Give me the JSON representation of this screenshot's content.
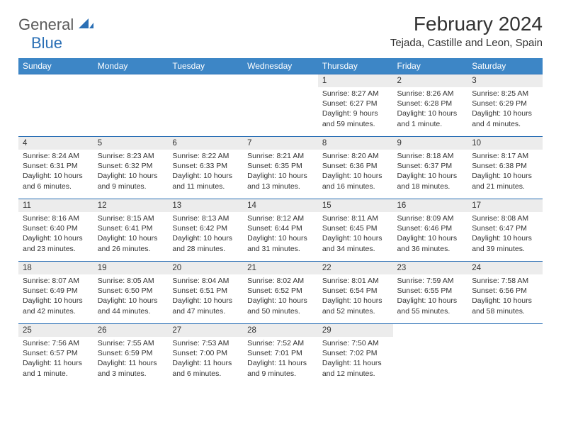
{
  "brand": {
    "part1": "General",
    "part2": "Blue"
  },
  "title": "February 2024",
  "location": "Tejada, Castille and Leon, Spain",
  "colors": {
    "header_bg": "#3d86c6",
    "border": "#2a6fb5",
    "daynum_bg": "#ececec",
    "text": "#333333",
    "logo_gray": "#5a5a5a",
    "logo_blue": "#2a6fb5",
    "page_bg": "#ffffff"
  },
  "typography": {
    "title_fontsize": 28,
    "location_fontsize": 15,
    "header_fontsize": 12,
    "daynum_fontsize": 11.5,
    "body_fontsize": 10.5
  },
  "layout": {
    "columns": 7,
    "rows": 5,
    "first_day_col": 4
  },
  "weekdays": [
    "Sunday",
    "Monday",
    "Tuesday",
    "Wednesday",
    "Thursday",
    "Friday",
    "Saturday"
  ],
  "days": [
    {
      "n": "1",
      "sr": "Sunrise: 8:27 AM",
      "ss": "Sunset: 6:27 PM",
      "dl": "Daylight: 9 hours and 59 minutes."
    },
    {
      "n": "2",
      "sr": "Sunrise: 8:26 AM",
      "ss": "Sunset: 6:28 PM",
      "dl": "Daylight: 10 hours and 1 minute."
    },
    {
      "n": "3",
      "sr": "Sunrise: 8:25 AM",
      "ss": "Sunset: 6:29 PM",
      "dl": "Daylight: 10 hours and 4 minutes."
    },
    {
      "n": "4",
      "sr": "Sunrise: 8:24 AM",
      "ss": "Sunset: 6:31 PM",
      "dl": "Daylight: 10 hours and 6 minutes."
    },
    {
      "n": "5",
      "sr": "Sunrise: 8:23 AM",
      "ss": "Sunset: 6:32 PM",
      "dl": "Daylight: 10 hours and 9 minutes."
    },
    {
      "n": "6",
      "sr": "Sunrise: 8:22 AM",
      "ss": "Sunset: 6:33 PM",
      "dl": "Daylight: 10 hours and 11 minutes."
    },
    {
      "n": "7",
      "sr": "Sunrise: 8:21 AM",
      "ss": "Sunset: 6:35 PM",
      "dl": "Daylight: 10 hours and 13 minutes."
    },
    {
      "n": "8",
      "sr": "Sunrise: 8:20 AM",
      "ss": "Sunset: 6:36 PM",
      "dl": "Daylight: 10 hours and 16 minutes."
    },
    {
      "n": "9",
      "sr": "Sunrise: 8:18 AM",
      "ss": "Sunset: 6:37 PM",
      "dl": "Daylight: 10 hours and 18 minutes."
    },
    {
      "n": "10",
      "sr": "Sunrise: 8:17 AM",
      "ss": "Sunset: 6:38 PM",
      "dl": "Daylight: 10 hours and 21 minutes."
    },
    {
      "n": "11",
      "sr": "Sunrise: 8:16 AM",
      "ss": "Sunset: 6:40 PM",
      "dl": "Daylight: 10 hours and 23 minutes."
    },
    {
      "n": "12",
      "sr": "Sunrise: 8:15 AM",
      "ss": "Sunset: 6:41 PM",
      "dl": "Daylight: 10 hours and 26 minutes."
    },
    {
      "n": "13",
      "sr": "Sunrise: 8:13 AM",
      "ss": "Sunset: 6:42 PM",
      "dl": "Daylight: 10 hours and 28 minutes."
    },
    {
      "n": "14",
      "sr": "Sunrise: 8:12 AM",
      "ss": "Sunset: 6:44 PM",
      "dl": "Daylight: 10 hours and 31 minutes."
    },
    {
      "n": "15",
      "sr": "Sunrise: 8:11 AM",
      "ss": "Sunset: 6:45 PM",
      "dl": "Daylight: 10 hours and 34 minutes."
    },
    {
      "n": "16",
      "sr": "Sunrise: 8:09 AM",
      "ss": "Sunset: 6:46 PM",
      "dl": "Daylight: 10 hours and 36 minutes."
    },
    {
      "n": "17",
      "sr": "Sunrise: 8:08 AM",
      "ss": "Sunset: 6:47 PM",
      "dl": "Daylight: 10 hours and 39 minutes."
    },
    {
      "n": "18",
      "sr": "Sunrise: 8:07 AM",
      "ss": "Sunset: 6:49 PM",
      "dl": "Daylight: 10 hours and 42 minutes."
    },
    {
      "n": "19",
      "sr": "Sunrise: 8:05 AM",
      "ss": "Sunset: 6:50 PM",
      "dl": "Daylight: 10 hours and 44 minutes."
    },
    {
      "n": "20",
      "sr": "Sunrise: 8:04 AM",
      "ss": "Sunset: 6:51 PM",
      "dl": "Daylight: 10 hours and 47 minutes."
    },
    {
      "n": "21",
      "sr": "Sunrise: 8:02 AM",
      "ss": "Sunset: 6:52 PM",
      "dl": "Daylight: 10 hours and 50 minutes."
    },
    {
      "n": "22",
      "sr": "Sunrise: 8:01 AM",
      "ss": "Sunset: 6:54 PM",
      "dl": "Daylight: 10 hours and 52 minutes."
    },
    {
      "n": "23",
      "sr": "Sunrise: 7:59 AM",
      "ss": "Sunset: 6:55 PM",
      "dl": "Daylight: 10 hours and 55 minutes."
    },
    {
      "n": "24",
      "sr": "Sunrise: 7:58 AM",
      "ss": "Sunset: 6:56 PM",
      "dl": "Daylight: 10 hours and 58 minutes."
    },
    {
      "n": "25",
      "sr": "Sunrise: 7:56 AM",
      "ss": "Sunset: 6:57 PM",
      "dl": "Daylight: 11 hours and 1 minute."
    },
    {
      "n": "26",
      "sr": "Sunrise: 7:55 AM",
      "ss": "Sunset: 6:59 PM",
      "dl": "Daylight: 11 hours and 3 minutes."
    },
    {
      "n": "27",
      "sr": "Sunrise: 7:53 AM",
      "ss": "Sunset: 7:00 PM",
      "dl": "Daylight: 11 hours and 6 minutes."
    },
    {
      "n": "28",
      "sr": "Sunrise: 7:52 AM",
      "ss": "Sunset: 7:01 PM",
      "dl": "Daylight: 11 hours and 9 minutes."
    },
    {
      "n": "29",
      "sr": "Sunrise: 7:50 AM",
      "ss": "Sunset: 7:02 PM",
      "dl": "Daylight: 11 hours and 12 minutes."
    }
  ]
}
